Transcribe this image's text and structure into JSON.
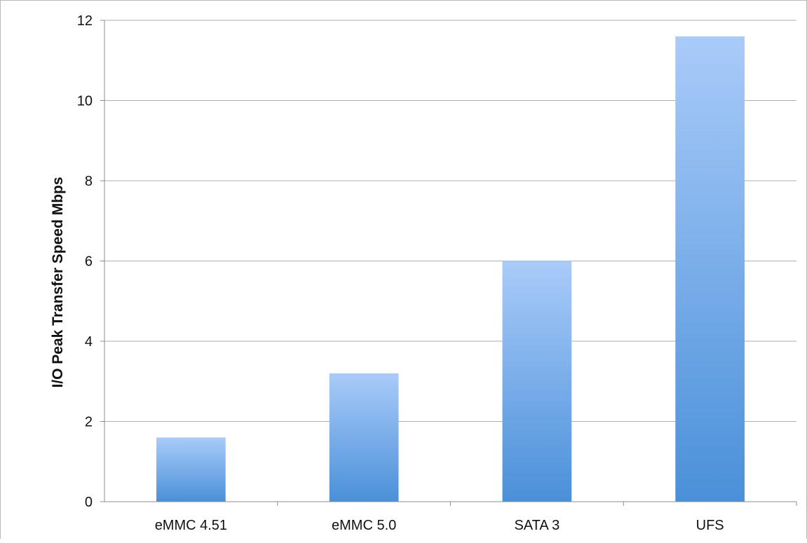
{
  "chart_data": {
    "type": "bar",
    "categories": [
      "eMMC 4.51",
      "eMMC 5.0",
      "SATA 3",
      "UFS"
    ],
    "values": [
      1.6,
      3.2,
      6.0,
      11.6
    ],
    "title": "",
    "xlabel": "",
    "ylabel": "I/O Peak Transfer Speed Mbps",
    "ylim": [
      0,
      12
    ],
    "yticks": [
      0,
      2,
      4,
      6,
      8,
      10,
      12
    ],
    "grid": true,
    "legend": "none",
    "bar_gradient": [
      "#a9cbf9",
      "#4a90d9"
    ],
    "colors": {
      "grid": "#aeaeae",
      "axis": "#8c8c8c",
      "text": "#111111"
    }
  }
}
